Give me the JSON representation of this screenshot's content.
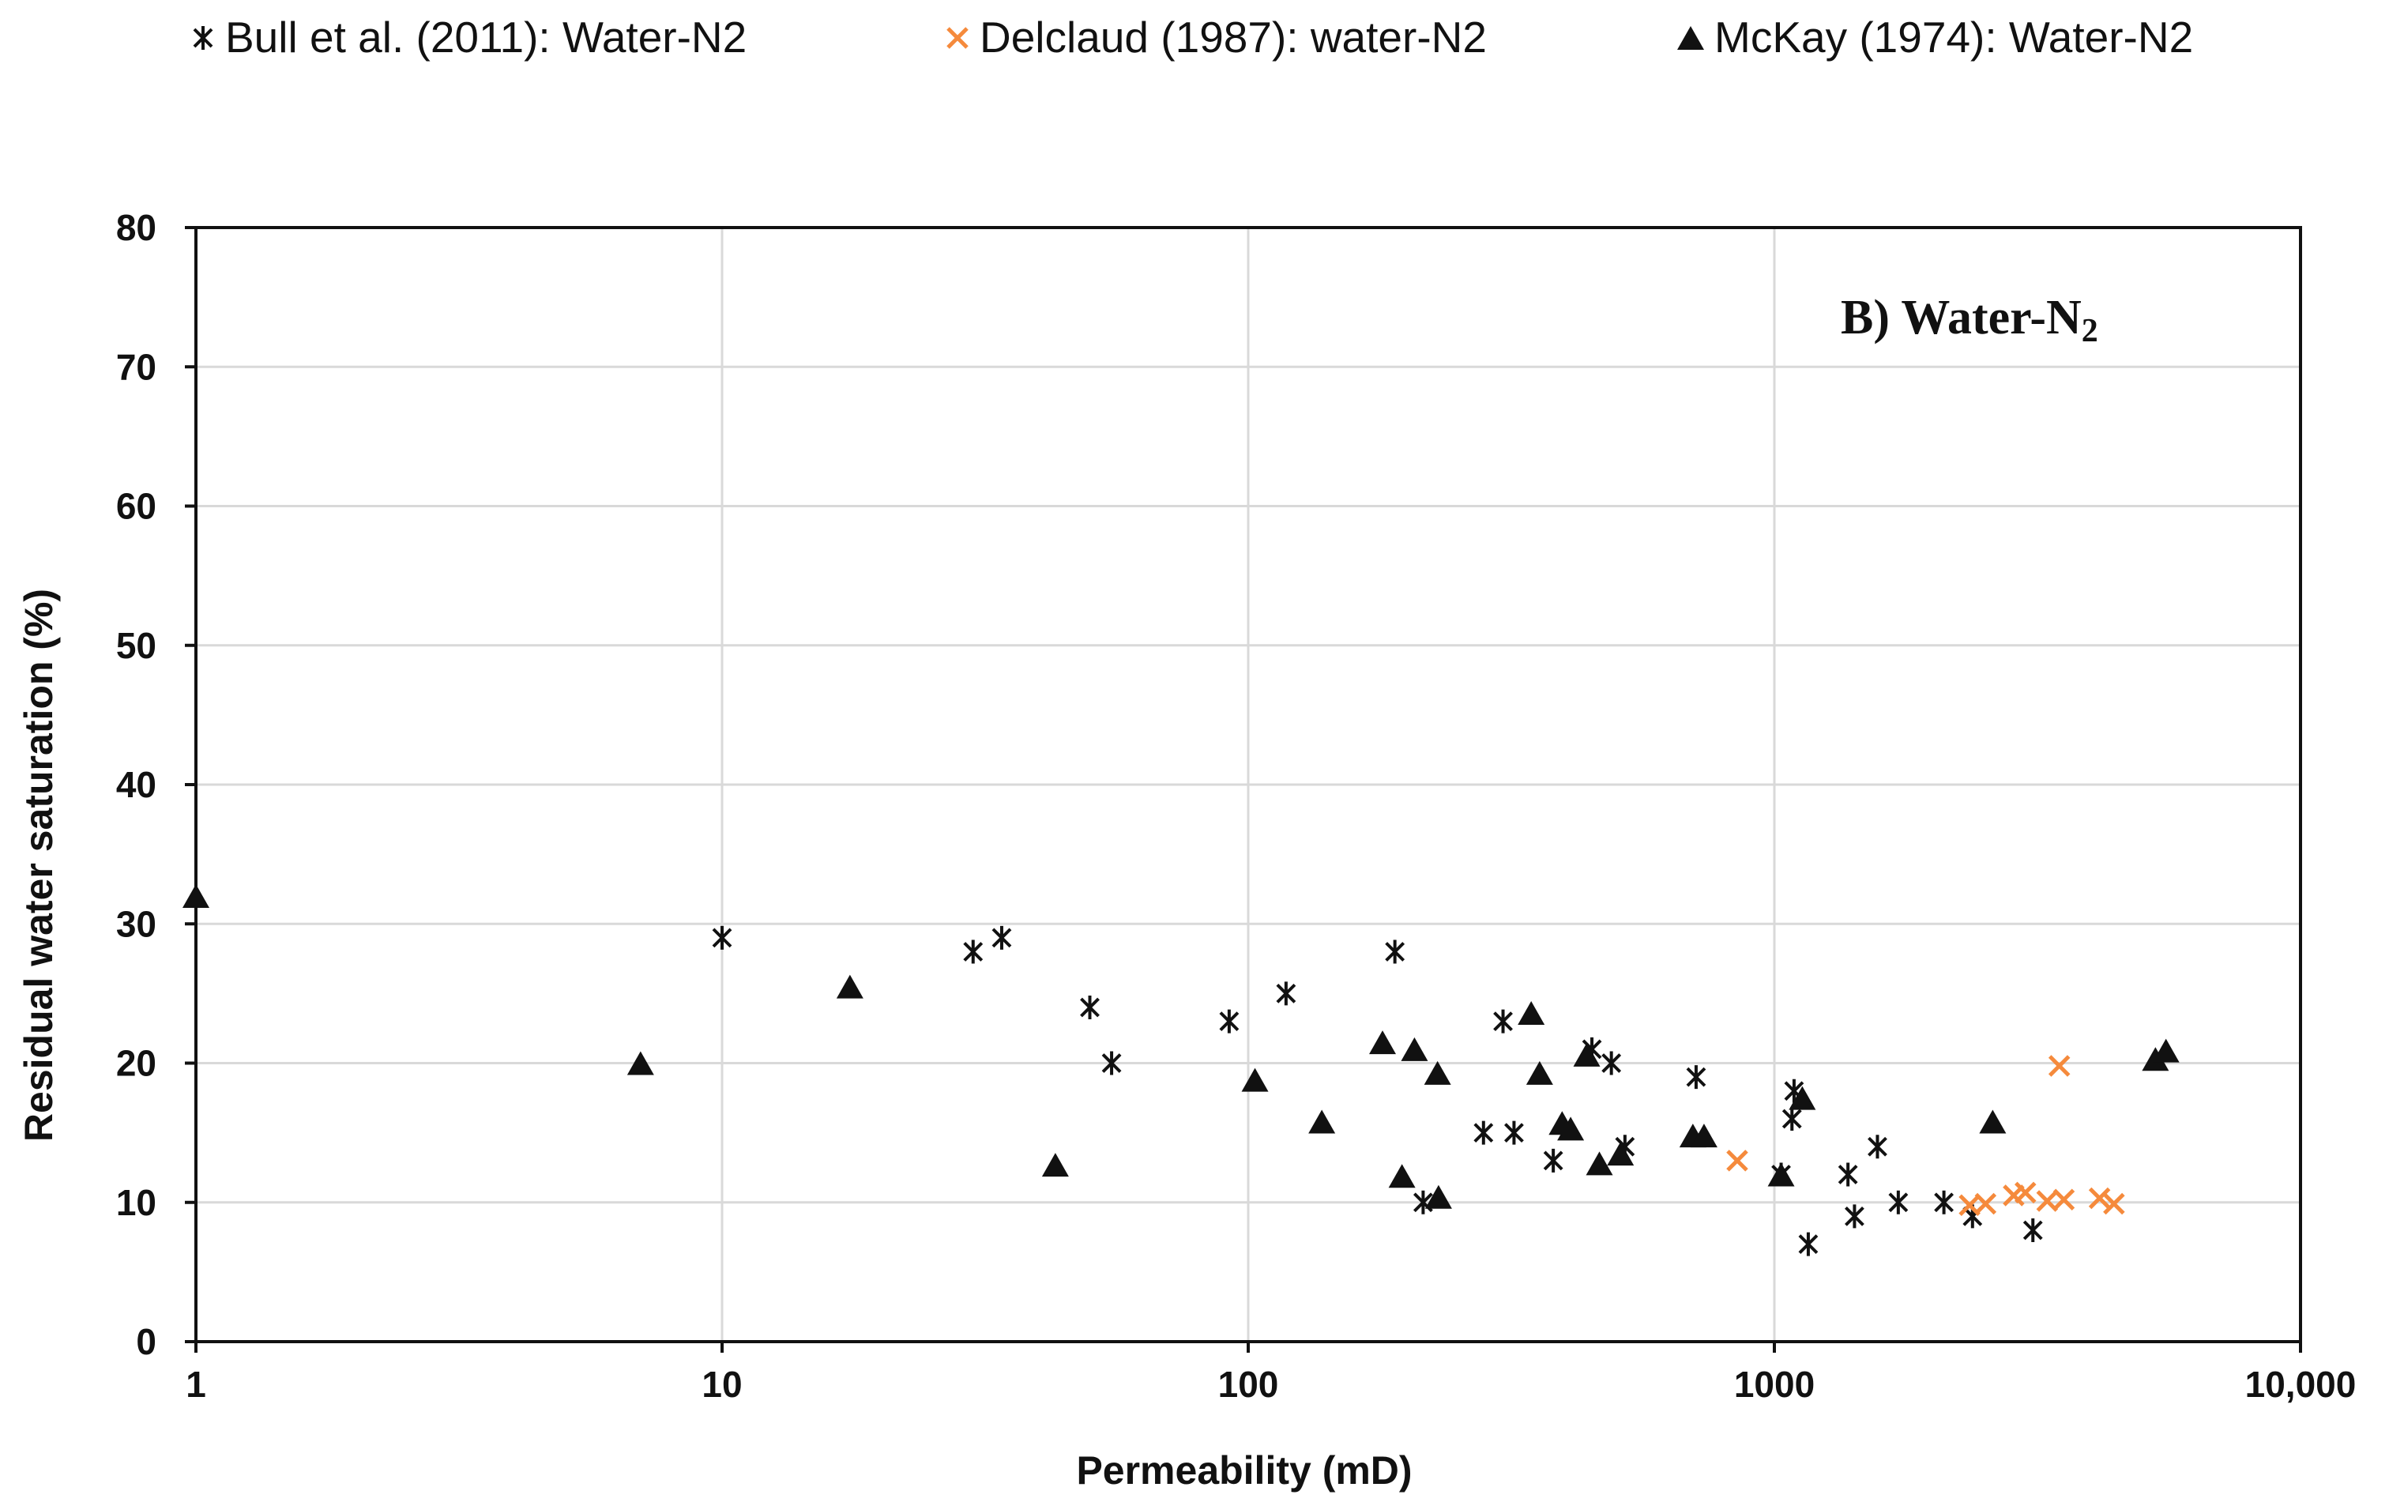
{
  "chart_data": {
    "type": "scatter",
    "title": "",
    "annotation": {
      "text": "B) Water-N",
      "subscript": "2"
    },
    "xlabel": "Permeability  (mD)",
    "ylabel": "Residual water saturation  (%)",
    "xscale": "log",
    "xlim": [
      1,
      10000
    ],
    "ylim": [
      0,
      80
    ],
    "x_ticks": [
      1,
      10,
      100,
      1000,
      10000
    ],
    "x_tick_labels": [
      "1",
      "10",
      "100",
      "1000",
      "10,000"
    ],
    "y_ticks": [
      0,
      10,
      20,
      30,
      40,
      50,
      60,
      70,
      80
    ],
    "y_tick_labels": [
      "0",
      "10",
      "20",
      "30",
      "40",
      "50",
      "60",
      "70",
      "80"
    ],
    "grid": true,
    "legend_position": "top",
    "series": [
      {
        "name": "Bull et al. (2011): Water-N2",
        "marker": "asterisk",
        "color": "#111111",
        "points": [
          [
            10,
            29
          ],
          [
            30,
            28
          ],
          [
            34,
            29
          ],
          [
            50,
            24
          ],
          [
            55,
            20
          ],
          [
            92,
            23
          ],
          [
            118,
            25
          ],
          [
            190,
            28
          ],
          [
            215,
            10
          ],
          [
            280,
            15
          ],
          [
            305,
            23
          ],
          [
            320,
            15
          ],
          [
            380,
            13
          ],
          [
            450,
            21
          ],
          [
            490,
            20
          ],
          [
            520,
            14
          ],
          [
            710,
            19
          ],
          [
            1030,
            12
          ],
          [
            1080,
            16
          ],
          [
            1090,
            18
          ],
          [
            1160,
            7
          ],
          [
            1380,
            12
          ],
          [
            1420,
            9
          ],
          [
            1570,
            14
          ],
          [
            1720,
            10
          ],
          [
            2100,
            10
          ],
          [
            2380,
            9
          ],
          [
            3100,
            8
          ]
        ]
      },
      {
        "name": "Delclaud (1987): water-N2",
        "marker": "x",
        "color": "#f58a3c",
        "points": [
          [
            850,
            13
          ],
          [
            2350,
            9.8
          ],
          [
            2520,
            9.9
          ],
          [
            2850,
            10.5
          ],
          [
            3000,
            10.7
          ],
          [
            3300,
            10.1
          ],
          [
            3480,
            19.8
          ],
          [
            3550,
            10.2
          ],
          [
            4150,
            10.3
          ],
          [
            4420,
            9.9
          ]
        ]
      },
      {
        "name": "McKay (1974): Water-N2",
        "marker": "triangle",
        "color": "#111111",
        "points": [
          [
            1,
            32
          ],
          [
            7,
            20
          ],
          [
            17.5,
            25.5
          ],
          [
            43,
            12.7
          ],
          [
            103,
            18.8
          ],
          [
            138,
            15.8
          ],
          [
            180,
            21.5
          ],
          [
            196,
            11.9
          ],
          [
            207,
            21
          ],
          [
            230,
            10.4
          ],
          [
            229,
            19.3
          ],
          [
            345,
            23.6
          ],
          [
            358,
            19.3
          ],
          [
            395,
            15.7
          ],
          [
            410,
            15.3
          ],
          [
            440,
            20.6
          ],
          [
            465,
            12.8
          ],
          [
            510,
            13.5
          ],
          [
            700,
            14.8
          ],
          [
            735,
            14.8
          ],
          [
            1030,
            12
          ],
          [
            1130,
            17.5
          ],
          [
            2600,
            15.8
          ],
          [
            5300,
            20.3
          ],
          [
            5550,
            20.9
          ]
        ]
      }
    ]
  },
  "colors": {
    "axis": "#111111",
    "grid": "#d9d9d9",
    "bull": "#111111",
    "delclaud": "#f58a3c",
    "mckay": "#111111"
  }
}
